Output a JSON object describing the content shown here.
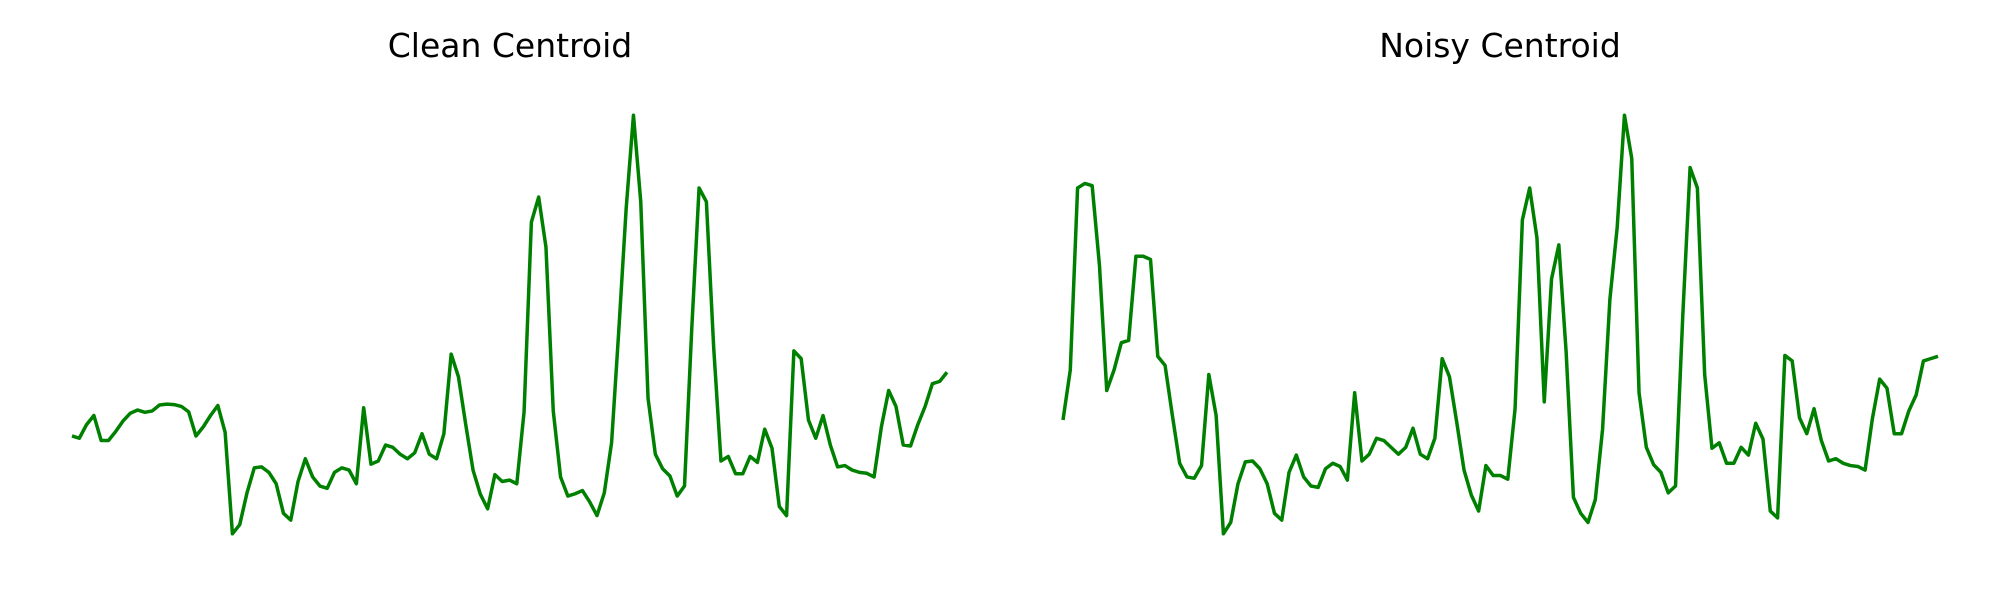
{
  "chart_data": [
    {
      "type": "line",
      "title": "Clean Centroid",
      "xlabel": "",
      "ylabel": "",
      "axes": "off",
      "grid": false,
      "color": "#008000",
      "series": [
        {
          "values": [
            0.255,
            0.25,
            0.28,
            0.3,
            0.245,
            0.245,
            0.265,
            0.288,
            0.305,
            0.312,
            0.307,
            0.31,
            0.323,
            0.325,
            0.324,
            0.32,
            0.308,
            0.255,
            0.275,
            0.3,
            0.322,
            0.263,
            0.04,
            0.06,
            0.13,
            0.185,
            0.187,
            0.175,
            0.15,
            0.085,
            0.07,
            0.155,
            0.205,
            0.165,
            0.145,
            0.14,
            0.175,
            0.185,
            0.18,
            0.15,
            0.317,
            0.193,
            0.2,
            0.235,
            0.23,
            0.215,
            0.205,
            0.218,
            0.26,
            0.215,
            0.205,
            0.26,
            0.435,
            0.385,
            0.28,
            0.18,
            0.127,
            0.095,
            0.17,
            0.155,
            0.158,
            0.15,
            0.308,
            0.725,
            0.78,
            0.67,
            0.31,
            0.165,
            0.123,
            0.128,
            0.135,
            0.11,
            0.08,
            0.13,
            0.24,
            0.49,
            0.755,
            0.96,
            0.77,
            0.338,
            0.215,
            0.183,
            0.167,
            0.123,
            0.145,
            0.492,
            0.8,
            0.77,
            0.45,
            0.2,
            0.21,
            0.172,
            0.172,
            0.21,
            0.197,
            0.27,
            0.228,
            0.1,
            0.08,
            0.442,
            0.425,
            0.29,
            0.25,
            0.3,
            0.235,
            0.187,
            0.19,
            0.18,
            0.175,
            0.173,
            0.165,
            0.275,
            0.355,
            0.32,
            0.235,
            0.233,
            0.28,
            0.32,
            0.37,
            0.375,
            0.395
          ]
        }
      ]
    },
    {
      "type": "line",
      "title": "Noisy Centroid",
      "xlabel": "",
      "ylabel": "",
      "axes": "off",
      "grid": false,
      "color": "#008000",
      "series": [
        {
          "values": [
            0.29,
            0.4,
            0.8,
            0.81,
            0.805,
            0.63,
            0.355,
            0.4,
            0.46,
            0.465,
            0.65,
            0.65,
            0.643,
            0.43,
            0.41,
            0.3,
            0.195,
            0.165,
            0.162,
            0.19,
            0.39,
            0.3,
            0.04,
            0.065,
            0.15,
            0.198,
            0.2,
            0.183,
            0.15,
            0.085,
            0.07,
            0.175,
            0.213,
            0.165,
            0.145,
            0.142,
            0.183,
            0.195,
            0.188,
            0.158,
            0.35,
            0.2,
            0.215,
            0.25,
            0.245,
            0.23,
            0.215,
            0.23,
            0.272,
            0.215,
            0.205,
            0.25,
            0.425,
            0.385,
            0.285,
            0.18,
            0.125,
            0.09,
            0.19,
            0.168,
            0.168,
            0.16,
            0.315,
            0.73,
            0.8,
            0.69,
            0.33,
            0.6,
            0.675,
            0.44,
            0.12,
            0.085,
            0.065,
            0.115,
            0.27,
            0.555,
            0.713,
            0.96,
            0.865,
            0.35,
            0.23,
            0.192,
            0.175,
            0.13,
            0.145,
            0.52,
            0.845,
            0.8,
            0.39,
            0.228,
            0.24,
            0.195,
            0.195,
            0.23,
            0.213,
            0.283,
            0.248,
            0.09,
            0.075,
            0.432,
            0.42,
            0.295,
            0.26,
            0.315,
            0.245,
            0.2,
            0.205,
            0.195,
            0.19,
            0.188,
            0.18,
            0.293,
            0.38,
            0.36,
            0.26,
            0.26,
            0.31,
            0.345,
            0.42,
            0.425,
            0.43
          ]
        }
      ]
    }
  ]
}
